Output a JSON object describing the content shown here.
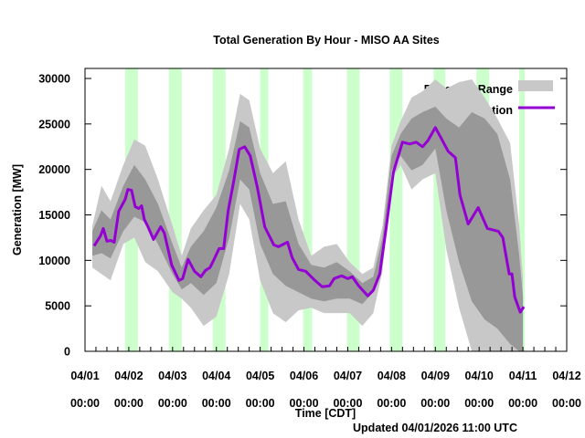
{
  "chart_data": {
    "type": "line",
    "title": "Total Generation By Hour - MISO AA Sites",
    "xlabel": "Time [CDT]",
    "ylabel": "Generation [MW]",
    "footer": "Updated 04/01/2026 11:00 UTC",
    "x_units": "hours since 04/01 00:00",
    "xlim": [
      0,
      264
    ],
    "ylim": [
      0,
      30000
    ],
    "yticks": [
      0,
      5000,
      10000,
      15000,
      20000,
      25000,
      30000
    ],
    "ytick_labels": [
      "0",
      "5000",
      "10000",
      "15000",
      "20000",
      "25000",
      "30000"
    ],
    "xtick_labels": [
      [
        "04/01",
        "00:00"
      ],
      [
        "04/02",
        "00:00"
      ],
      [
        "04/03",
        "00:00"
      ],
      [
        "04/04",
        "00:00"
      ],
      [
        "04/05",
        "00:00"
      ],
      [
        "04/06",
        "00:00"
      ],
      [
        "04/07",
        "00:00"
      ],
      [
        "04/08",
        "00:00"
      ],
      [
        "04/09",
        "00:00"
      ],
      [
        "04/10",
        "00:00"
      ],
      [
        "04/11",
        "00:00"
      ],
      [
        "04/12",
        "00:00"
      ]
    ],
    "legend": {
      "placement": "top-right",
      "entries": [
        {
          "label": "Expected Range",
          "color": "#c8c8c8"
        },
        {
          "label": "Generation",
          "color": "#9400d3"
        }
      ]
    },
    "colors": {
      "outer_band": "#c8c8c8",
      "inner_band": "#989898",
      "line": "#9400d3",
      "highlight": "#ccffcc"
    },
    "highlight_periods": [
      [
        22,
        29
      ],
      [
        46,
        53
      ],
      [
        70,
        77
      ],
      [
        96,
        100.5
      ],
      [
        119.5,
        124.5
      ],
      [
        143.5,
        150.5
      ],
      [
        167,
        174
      ],
      [
        191,
        197.5
      ],
      [
        214.5,
        221.5
      ],
      [
        238,
        241
      ]
    ],
    "expected_range": {
      "hours": [
        4,
        9,
        14,
        21,
        27,
        33,
        40,
        48,
        53,
        58,
        65,
        72,
        79,
        85,
        90,
        96,
        103,
        110,
        117,
        124,
        131,
        138,
        145,
        152,
        158,
        163,
        168,
        173,
        179,
        185,
        192,
        198,
        205,
        212,
        219,
        226,
        233,
        238,
        240
      ],
      "outer_upper": [
        13800,
        18200,
        16500,
        20500,
        23300,
        22600,
        18900,
        13800,
        10500,
        13500,
        15500,
        17200,
        22300,
        28300,
        27600,
        22300,
        19600,
        20900,
        14500,
        10500,
        11500,
        11800,
        9800,
        8500,
        9200,
        13800,
        22600,
        25300,
        27900,
        28600,
        29900,
        28900,
        29600,
        29900,
        27900,
        25600,
        22900,
        13800,
        8000
      ],
      "inner_upper": [
        13200,
        15500,
        14500,
        18200,
        20500,
        18900,
        16200,
        11800,
        9200,
        11500,
        13200,
        15800,
        19900,
        25300,
        24600,
        19600,
        16200,
        16500,
        11800,
        9500,
        9200,
        9800,
        8800,
        7500,
        8200,
        12500,
        21500,
        23900,
        25600,
        26300,
        26900,
        25600,
        24600,
        26300,
        25600,
        23900,
        18900,
        10500,
        6000
      ],
      "inner_lower": [
        10500,
        10800,
        10200,
        13200,
        14800,
        14200,
        11800,
        8500,
        6800,
        7500,
        6200,
        7500,
        12500,
        18900,
        17800,
        11800,
        8500,
        7200,
        6500,
        5800,
        5500,
        5800,
        5800,
        5200,
        6500,
        10200,
        19900,
        21500,
        19900,
        20500,
        22300,
        15500,
        9800,
        5500,
        3500,
        2500,
        800,
        0,
        0
      ],
      "outer_lower": [
        9200,
        8500,
        7800,
        11800,
        12500,
        9800,
        8800,
        6500,
        5800,
        4800,
        2800,
        3800,
        8500,
        16200,
        14500,
        7800,
        4200,
        3200,
        4500,
        4800,
        4200,
        4200,
        4200,
        2800,
        4200,
        8800,
        18900,
        20500,
        17800,
        18900,
        19600,
        11200,
        4800,
        0,
        0,
        0,
        0,
        0,
        0
      ]
    },
    "generation": {
      "hours": [
        5,
        8.5,
        10,
        12,
        14,
        16,
        18.5,
        22,
        23.5,
        25.5,
        27.5,
        29.5,
        31,
        32.5,
        34.5,
        37.5,
        41.5,
        43.5,
        47.5,
        51.5,
        53.5,
        56.5,
        60,
        63.5,
        66,
        68.5,
        70.5,
        73.5,
        76,
        78.5,
        81.5,
        84.5,
        87.5,
        90.5,
        94.5,
        98.5,
        103.5,
        106,
        111,
        113.5,
        117,
        121,
        126,
        130,
        134,
        136.5,
        140.5,
        144,
        146.5,
        150,
        155,
        158,
        161.5,
        165,
        169,
        174,
        178,
        181.5,
        185,
        188,
        192,
        195,
        199,
        203,
        205.5,
        210,
        215.5,
        220.5,
        226.5,
        229,
        232.5,
        234,
        235.5,
        238.5,
        240.5
      ],
      "values": [
        11600,
        12700,
        13500,
        12100,
        12200,
        12000,
        15400,
        16700,
        17800,
        17700,
        15900,
        15700,
        16000,
        14500,
        13700,
        12300,
        13700,
        13000,
        9500,
        7800,
        8000,
        10100,
        8800,
        8200,
        8900,
        9200,
        10000,
        11300,
        11300,
        15500,
        18700,
        22200,
        22500,
        21500,
        18000,
        13700,
        11700,
        11500,
        12000,
        10300,
        9000,
        8800,
        7800,
        7100,
        7200,
        8000,
        8300,
        8000,
        8200,
        7200,
        6100,
        6700,
        8500,
        13500,
        19700,
        23000,
        22800,
        23000,
        22500,
        23200,
        24600,
        23500,
        22000,
        21300,
        17200,
        14000,
        15800,
        13500,
        13200,
        12500,
        8500,
        8500,
        6000,
        4300,
        4900
      ]
    }
  }
}
